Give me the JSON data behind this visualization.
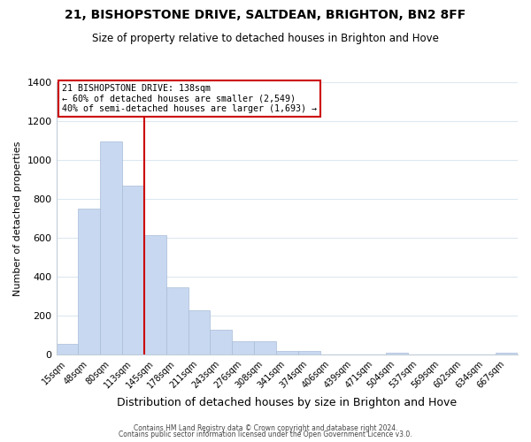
{
  "title": "21, BISHOPSTONE DRIVE, SALTDEAN, BRIGHTON, BN2 8FF",
  "subtitle": "Size of property relative to detached houses in Brighton and Hove",
  "xlabel": "Distribution of detached houses by size in Brighton and Hove",
  "ylabel": "Number of detached properties",
  "bar_color": "#c8d8f0",
  "bar_edge_color": "#a8bcd8",
  "categories": [
    "15sqm",
    "48sqm",
    "80sqm",
    "113sqm",
    "145sqm",
    "178sqm",
    "211sqm",
    "243sqm",
    "276sqm",
    "308sqm",
    "341sqm",
    "374sqm",
    "406sqm",
    "439sqm",
    "471sqm",
    "504sqm",
    "537sqm",
    "569sqm",
    "602sqm",
    "634sqm",
    "667sqm"
  ],
  "values": [
    55,
    750,
    1095,
    870,
    615,
    345,
    228,
    130,
    68,
    70,
    22,
    18,
    0,
    0,
    0,
    10,
    0,
    0,
    0,
    0,
    10
  ],
  "vline_x": 4,
  "vline_color": "#cc0000",
  "annotation_title": "21 BISHOPSTONE DRIVE: 138sqm",
  "annotation_line1": "← 60% of detached houses are smaller (2,549)",
  "annotation_line2": "40% of semi-detached houses are larger (1,693) →",
  "annotation_box_color": "#ffffff",
  "annotation_box_edge": "#cc0000",
  "ylim": [
    0,
    1400
  ],
  "yticks": [
    0,
    200,
    400,
    600,
    800,
    1000,
    1200,
    1400
  ],
  "footer1": "Contains HM Land Registry data © Crown copyright and database right 2024.",
  "footer2": "Contains public sector information licensed under the Open Government Licence v3.0.",
  "title_fontsize": 10,
  "subtitle_fontsize": 8.5,
  "background_color": "#ffffff",
  "grid_color": "#dce8f0"
}
